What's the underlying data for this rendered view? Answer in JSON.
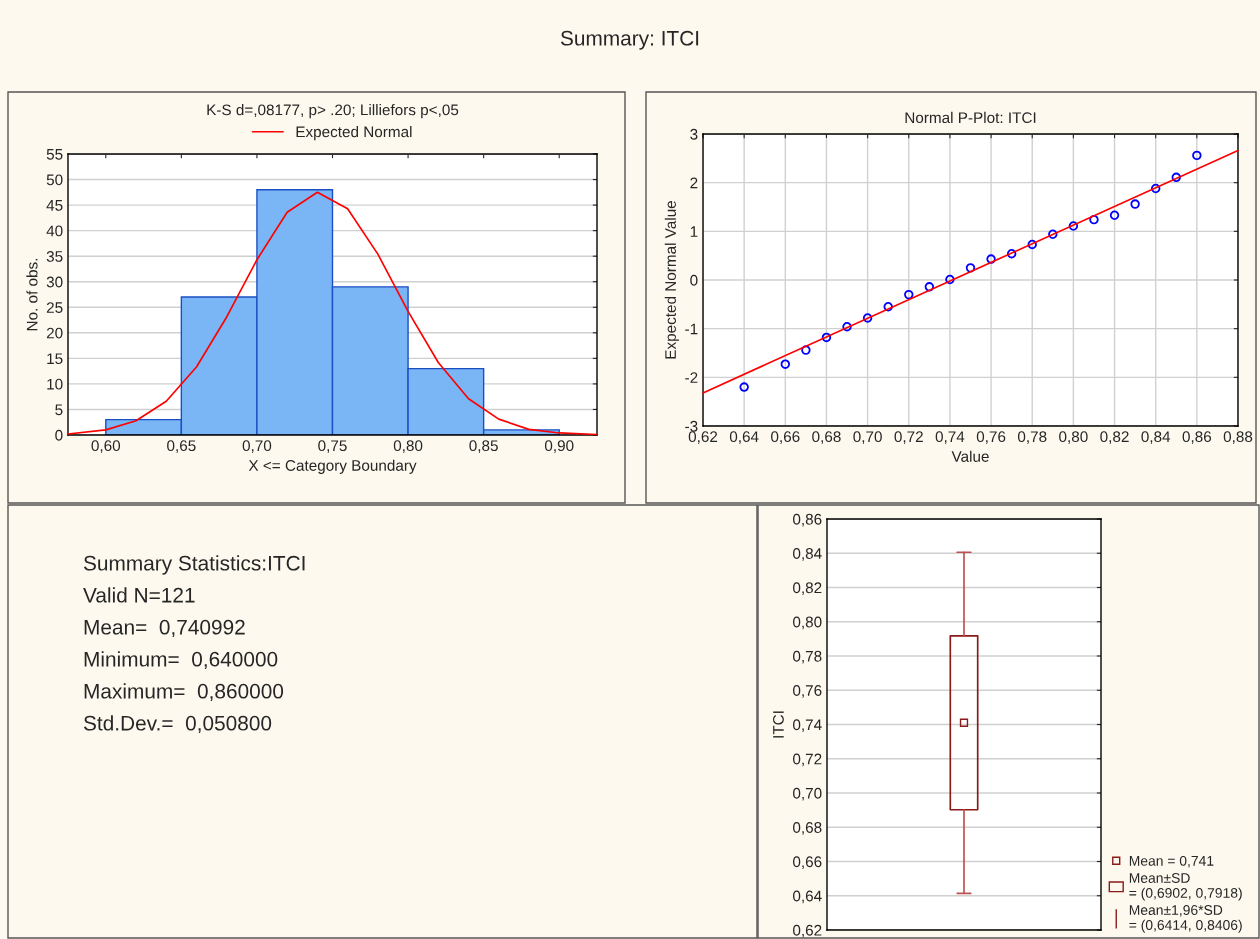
{
  "chart_data": [
    {
      "type": "histogram",
      "title": "K-S d=,08177, p> .20; Lilliefors p<,05",
      "xlabel": "X <= Category Boundary",
      "ylabel": "No. of obs.",
      "bins": [
        0.6,
        0.65,
        0.7,
        0.75,
        0.8,
        0.85,
        0.9
      ],
      "values": [
        3,
        27,
        48,
        29,
        13,
        1
      ],
      "color": "#7ab6f6",
      "series": [
        {
          "type": "line",
          "name": "Expected Normal",
          "color": "#ff0000",
          "x": [
            0.575,
            0.6,
            0.62,
            0.64,
            0.66,
            0.68,
            0.7,
            0.72,
            0.74,
            0.76,
            0.78,
            0.8,
            0.82,
            0.84,
            0.86,
            0.88,
            0.9,
            0.925
          ],
          "values": [
            0.2,
            1.0,
            2.8,
            6.6,
            13.3,
            23.1,
            34.3,
            43.6,
            47.5,
            44.3,
            35.4,
            24.2,
            14.2,
            7.1,
            3.1,
            1.1,
            0.4,
            0.1
          ]
        }
      ],
      "xlim": [
        0.575,
        0.925
      ],
      "xticks": [
        {
          "value": 0.6,
          "label": "0,60"
        },
        {
          "value": 0.65,
          "label": "0,65"
        },
        {
          "value": 0.7,
          "label": "0,70"
        },
        {
          "value": 0.75,
          "label": "0,75"
        },
        {
          "value": 0.8,
          "label": "0,80"
        },
        {
          "value": 0.85,
          "label": "0,85"
        },
        {
          "value": 0.9,
          "label": "0,90"
        }
      ],
      "ylim": [
        0,
        55
      ],
      "yticks": [
        0,
        5,
        10,
        15,
        20,
        25,
        30,
        35,
        40,
        45,
        50,
        55
      ],
      "grid": "y",
      "legend": "top"
    },
    {
      "type": "scatter",
      "title": "Normal P-Plot: ITCI",
      "xlabel": "Value",
      "ylabel": "Expected Normal Value",
      "series": [
        {
          "color": "#0000ff",
          "marker": "circle",
          "x": [
            0.64,
            0.66,
            0.67,
            0.68,
            0.69,
            0.7,
            0.71,
            0.72,
            0.73,
            0.74,
            0.75,
            0.76,
            0.77,
            0.78,
            0.79,
            0.8,
            0.81,
            0.82,
            0.83,
            0.84,
            0.85,
            0.86
          ],
          "values": [
            -2.2,
            -1.73,
            -1.44,
            -1.18,
            -0.96,
            -0.78,
            -0.55,
            -0.3,
            -0.14,
            0.01,
            0.25,
            0.43,
            0.54,
            0.73,
            0.94,
            1.11,
            1.24,
            1.33,
            1.56,
            1.88,
            2.11,
            2.56
          ]
        },
        {
          "type": "line",
          "color": "#ff0000",
          "x": [
            0.62,
            0.88
          ],
          "values": [
            -2.32,
            2.66
          ]
        }
      ],
      "xlim": [
        0.62,
        0.88
      ],
      "xticks": [
        {
          "value": 0.62,
          "label": "0,62"
        },
        {
          "value": 0.64,
          "label": "0,64"
        },
        {
          "value": 0.66,
          "label": "0,66"
        },
        {
          "value": 0.68,
          "label": "0,68"
        },
        {
          "value": 0.7,
          "label": "0,70"
        },
        {
          "value": 0.72,
          "label": "0,72"
        },
        {
          "value": 0.74,
          "label": "0,74"
        },
        {
          "value": 0.76,
          "label": "0,76"
        },
        {
          "value": 0.78,
          "label": "0,78"
        },
        {
          "value": 0.8,
          "label": "0,80"
        },
        {
          "value": 0.82,
          "label": "0,82"
        },
        {
          "value": 0.84,
          "label": "0,84"
        },
        {
          "value": 0.86,
          "label": "0,86"
        },
        {
          "value": 0.88,
          "label": "0,88"
        }
      ],
      "ylim": [
        -3,
        3
      ],
      "yticks": [
        -3,
        -2,
        -1,
        0,
        1,
        2,
        3
      ],
      "grid": true
    },
    {
      "type": "other",
      "title": "Summary: ITCI",
      "annotations": [
        "Summary Statistics:ITCI",
        "Valid N=121",
        "Mean=  0,740992",
        "Minimum=  0,640000",
        "Maximum=  0,860000",
        "Std.Dev.=  0,050800"
      ]
    },
    {
      "type": "box",
      "ylabel": "ITCI",
      "categories": [
        null
      ],
      "color": "#8b1a1a",
      "boxes": [
        {
          "low": 0.6414,
          "q1": 0.6902,
          "median": 0.741,
          "q3": 0.7918,
          "high": 0.8406
        }
      ],
      "ylim": [
        0.62,
        0.86
      ],
      "yticks": [
        {
          "value": 0.62,
          "label": "0,62"
        },
        {
          "value": 0.64,
          "label": "0,64"
        },
        {
          "value": 0.66,
          "label": "0,66"
        },
        {
          "value": 0.68,
          "label": "0,68"
        },
        {
          "value": 0.7,
          "label": "0,70"
        },
        {
          "value": 0.72,
          "label": "0,72"
        },
        {
          "value": 0.74,
          "label": "0,74"
        },
        {
          "value": 0.76,
          "label": "0,76"
        },
        {
          "value": 0.78,
          "label": "0,78"
        },
        {
          "value": 0.8,
          "label": "0,80"
        },
        {
          "value": 0.82,
          "label": "0,82"
        },
        {
          "value": 0.84,
          "label": "0,84"
        },
        {
          "value": 0.86,
          "label": "0,86"
        }
      ],
      "grid": "y",
      "annotations": [
        "Mean = 0,741",
        "Mean±SD\n= (0,6902, 0,7918)",
        "Mean±1,96*SD\n= (0,6414, 0,8406)"
      ]
    }
  ]
}
